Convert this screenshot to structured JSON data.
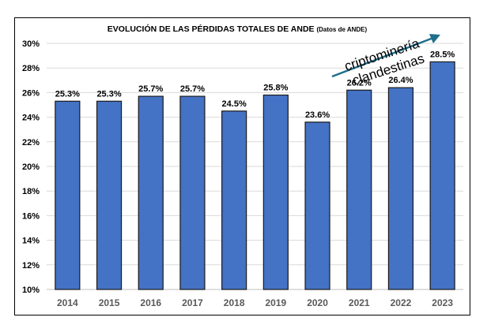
{
  "chart_data": {
    "type": "bar",
    "title": "EVOLUCIÓN DE LAS PÉRDIDAS TOTALES DE ANDE",
    "subtitle": "(Datos de ANDE)",
    "categories": [
      "2014",
      "2015",
      "2016",
      "2017",
      "2018",
      "2019",
      "2020",
      "2021",
      "2022",
      "2023"
    ],
    "values": [
      25.3,
      25.3,
      25.7,
      25.7,
      24.5,
      25.8,
      23.6,
      26.2,
      26.4,
      28.5
    ],
    "data_labels": [
      "25.3%",
      "25.3%",
      "25.7%",
      "25.7%",
      "24.5%",
      "25.8%",
      "23.6%",
      "26.2%",
      "26.4%",
      "28.5%"
    ],
    "ylim": [
      10,
      30
    ],
    "yticks": [
      "10%",
      "12%",
      "14%",
      "16%",
      "18%",
      "20%",
      "22%",
      "24%",
      "26%",
      "28%",
      "30%"
    ],
    "xlabel": "",
    "ylabel": "",
    "grid": true,
    "bar_color": "#4472C4",
    "annotation": {
      "line1": "criptominería",
      "line2": "clandestinas",
      "arrow_color": "#1F6E8C"
    }
  }
}
